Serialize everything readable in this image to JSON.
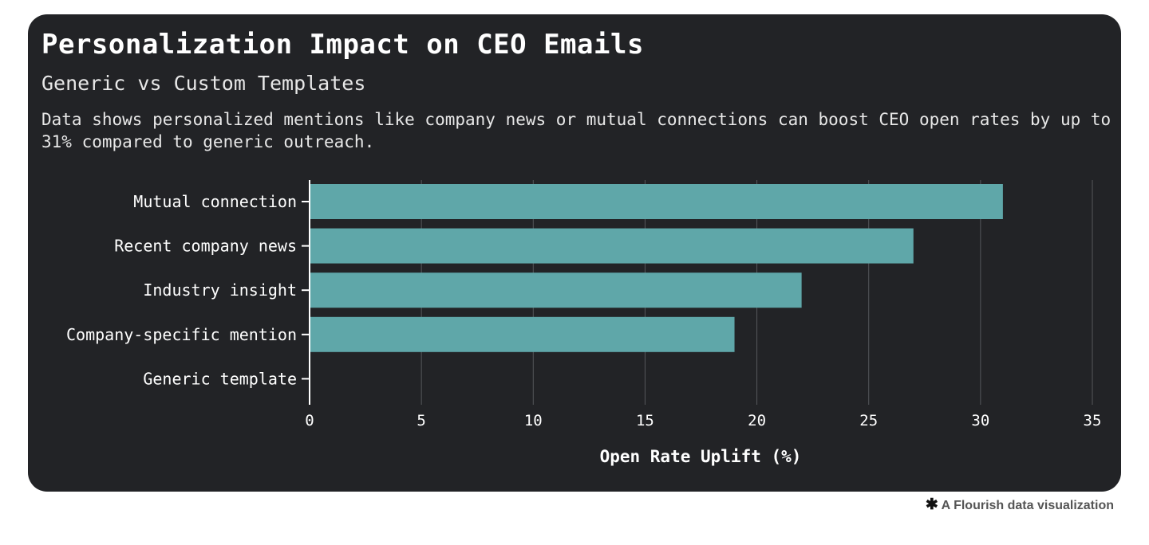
{
  "title": "Personalization Impact on CEO Emails",
  "subtitle": "Generic vs Custom Templates",
  "description": "Data shows personalized mentions like company news or mutual connections can boost CEO open rates by up to 31% compared to generic outreach.",
  "footer": {
    "icon": "flourish-asterisk-icon",
    "text": "A Flourish data visualization"
  },
  "chart_data": {
    "type": "bar",
    "orientation": "horizontal",
    "categories": [
      "Mutual connection",
      "Recent company news",
      "Industry insight",
      "Company-specific mention",
      "Generic template"
    ],
    "values": [
      31,
      27,
      22,
      19,
      0
    ],
    "xlabel": "Open Rate Uplift (%)",
    "xlim": [
      0,
      35
    ],
    "xticks": [
      0,
      5,
      10,
      15,
      20,
      25,
      30,
      35
    ],
    "grid": true,
    "colors": {
      "bar": "#5fa7a9",
      "background": "#222326",
      "text": "#ffffff",
      "grid": "#55575b"
    }
  }
}
